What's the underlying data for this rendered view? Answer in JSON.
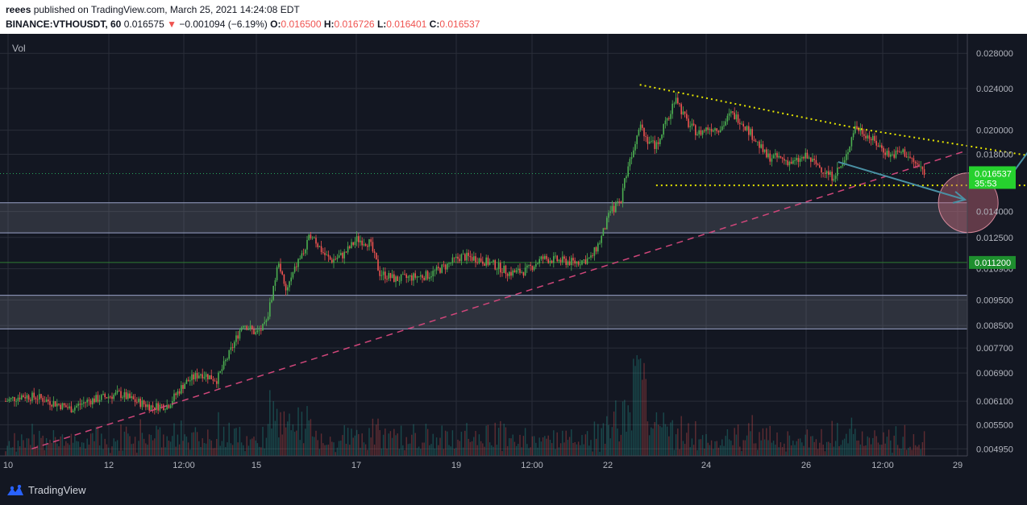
{
  "header": {
    "author": "reees",
    "published_text": " published on TradingView.com, March 25, 2021 14:24:08 EDT",
    "symbol": "BINANCE:VTHOUSDT, 60",
    "last": "0.016575",
    "change": "−0.001094 (−6.19%)",
    "o_label": "O:",
    "o_value": "0.016500",
    "h_label": "H:",
    "h_value": "0.016726",
    "l_label": "L:",
    "l_value": "0.016401",
    "c_label": "C:",
    "c_value": "0.016537"
  },
  "footer": {
    "brand": "TradingView"
  },
  "chart_data": {
    "type": "candlestick",
    "indicator_label": "Vol",
    "y_scale": "log",
    "ylim": [
      0.0048,
      0.0305
    ],
    "y_ticks": [
      "0.028000",
      "0.024000",
      "0.020000",
      "0.018000",
      "0.014000",
      "0.012500",
      "0.010900",
      "0.009500",
      "0.008500",
      "0.007700",
      "0.006900",
      "0.006100",
      "0.005500",
      "0.004950"
    ],
    "x_ticks": [
      "10",
      "12",
      "12:00",
      "15",
      "17",
      "19",
      "12:00",
      "22",
      "24",
      "26",
      "12:00",
      "29"
    ],
    "last_price": {
      "price": "0.016537",
      "countdown": "35:53",
      "color": "#26d12e"
    },
    "level_label": {
      "price": "0.011200",
      "color": "#1e8f2e"
    },
    "candles": [
      {
        "t": 0.0,
        "p": 0.0061
      },
      {
        "t": 0.5,
        "p": 0.00625
      },
      {
        "t": 1.0,
        "p": 0.0062
      },
      {
        "t": 1.5,
        "p": 0.00605
      },
      {
        "t": 2.0,
        "p": 0.0059
      },
      {
        "t": 2.5,
        "p": 0.0061
      },
      {
        "t": 3.0,
        "p": 0.0062
      },
      {
        "t": 3.5,
        "p": 0.0063
      },
      {
        "t": 4.0,
        "p": 0.0061
      },
      {
        "t": 4.5,
        "p": 0.00595
      },
      {
        "t": 5.0,
        "p": 0.006
      },
      {
        "t": 5.5,
        "p": 0.0066
      },
      {
        "t": 6.0,
        "p": 0.0069
      },
      {
        "t": 6.5,
        "p": 0.0067
      },
      {
        "t": 7.0,
        "p": 0.0078
      },
      {
        "t": 7.3,
        "p": 0.0086
      },
      {
        "t": 7.7,
        "p": 0.0082
      },
      {
        "t": 8.0,
        "p": 0.0085
      },
      {
        "t": 8.2,
        "p": 0.0098
      },
      {
        "t": 8.4,
        "p": 0.0113
      },
      {
        "t": 8.6,
        "p": 0.0098
      },
      {
        "t": 8.8,
        "p": 0.0105
      },
      {
        "t": 9.0,
        "p": 0.0113
      },
      {
        "t": 9.2,
        "p": 0.0118
      },
      {
        "t": 9.4,
        "p": 0.0128
      },
      {
        "t": 9.6,
        "p": 0.0121
      },
      {
        "t": 9.8,
        "p": 0.0116
      },
      {
        "t": 10.0,
        "p": 0.0113
      },
      {
        "t": 10.4,
        "p": 0.0116
      },
      {
        "t": 10.8,
        "p": 0.0124
      },
      {
        "t": 11.2,
        "p": 0.0122
      },
      {
        "t": 11.5,
        "p": 0.0107
      },
      {
        "t": 12.0,
        "p": 0.0104
      },
      {
        "t": 12.5,
        "p": 0.0105
      },
      {
        "t": 13.0,
        "p": 0.0106
      },
      {
        "t": 13.5,
        "p": 0.011
      },
      {
        "t": 14.0,
        "p": 0.0115
      },
      {
        "t": 14.5,
        "p": 0.0114
      },
      {
        "t": 15.0,
        "p": 0.0111
      },
      {
        "t": 15.5,
        "p": 0.0107
      },
      {
        "t": 16.0,
        "p": 0.0108
      },
      {
        "t": 16.5,
        "p": 0.0114
      },
      {
        "t": 17.0,
        "p": 0.0113
      },
      {
        "t": 17.5,
        "p": 0.0112
      },
      {
        "t": 18.0,
        "p": 0.0114
      },
      {
        "t": 18.3,
        "p": 0.0124
      },
      {
        "t": 18.6,
        "p": 0.014
      },
      {
        "t": 18.9,
        "p": 0.0146
      },
      {
        "t": 19.1,
        "p": 0.0168
      },
      {
        "t": 19.3,
        "p": 0.0185
      },
      {
        "t": 19.5,
        "p": 0.0208
      },
      {
        "t": 19.7,
        "p": 0.0193
      },
      {
        "t": 20.0,
        "p": 0.0186
      },
      {
        "t": 20.2,
        "p": 0.02
      },
      {
        "t": 20.4,
        "p": 0.0212
      },
      {
        "t": 20.6,
        "p": 0.0234
      },
      {
        "t": 20.8,
        "p": 0.0216
      },
      {
        "t": 21.0,
        "p": 0.0205
      },
      {
        "t": 21.3,
        "p": 0.0197
      },
      {
        "t": 21.6,
        "p": 0.0202
      },
      {
        "t": 22.0,
        "p": 0.0202
      },
      {
        "t": 22.3,
        "p": 0.0215
      },
      {
        "t": 22.6,
        "p": 0.0209
      },
      {
        "t": 23.0,
        "p": 0.0194
      },
      {
        "t": 23.4,
        "p": 0.0178
      },
      {
        "t": 23.8,
        "p": 0.0177
      },
      {
        "t": 24.2,
        "p": 0.0173
      },
      {
        "t": 24.6,
        "p": 0.0178
      },
      {
        "t": 25.0,
        "p": 0.0171
      },
      {
        "t": 25.4,
        "p": 0.0163
      },
      {
        "t": 25.8,
        "p": 0.0174
      },
      {
        "t": 26.1,
        "p": 0.0203
      },
      {
        "t": 26.4,
        "p": 0.0198
      },
      {
        "t": 26.8,
        "p": 0.0188
      },
      {
        "t": 27.2,
        "p": 0.0179
      },
      {
        "t": 27.6,
        "p": 0.0182
      },
      {
        "t": 28.0,
        "p": 0.0172
      },
      {
        "t": 28.3,
        "p": 0.0166
      }
    ],
    "annotations": {
      "resistance_line_color": "#e6e600",
      "support_line_color": "#e6e600",
      "trendline_color": "#d0467a",
      "arrow_color": "#4a90a4",
      "circle_color": "#c26578",
      "zone_color": "#787b86"
    }
  }
}
